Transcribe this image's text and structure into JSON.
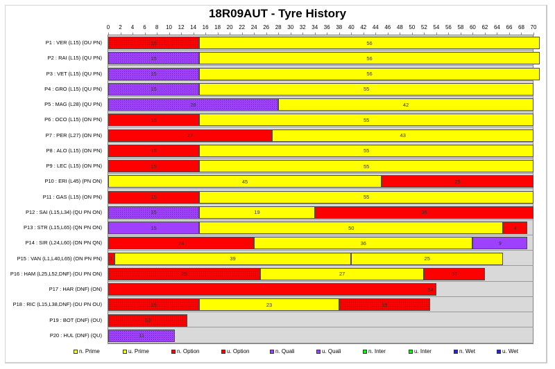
{
  "title": "18R09AUT - Tyre History",
  "colors": {
    "prime": "#ffff00",
    "option": "#ff0000",
    "quali": "#a040ff",
    "inter": "#00ff00",
    "wet": "#2020ff",
    "plot_bg": "#d9d9d9"
  },
  "chart_data": {
    "type": "bar",
    "orientation": "horizontal-stacked",
    "title": "18R09AUT - Tyre History",
    "xlabel": "",
    "ylabel": "",
    "xlim": [
      0,
      70
    ],
    "x_ticks": [
      0,
      2,
      4,
      6,
      8,
      10,
      12,
      14,
      16,
      18,
      20,
      22,
      24,
      26,
      28,
      30,
      32,
      34,
      36,
      38,
      40,
      42,
      44,
      46,
      48,
      50,
      52,
      54,
      56,
      58,
      60,
      62,
      64,
      66,
      68,
      70
    ],
    "grid": false,
    "legend_position": "bottom",
    "legend": [
      "n. Prime",
      "u. Prime",
      "n. Option",
      "u. Option",
      "n. Quali",
      "u. Quali",
      "n. Inter",
      "u. Inter",
      "n. Wet",
      "u. Wet"
    ],
    "rows": [
      {
        "label": "P1 : VER (L15) (OU PN)",
        "stints": [
          {
            "tyre": "u. Option",
            "laps": 15
          },
          {
            "tyre": "n. Prime",
            "laps": 56
          }
        ]
      },
      {
        "label": "P2 : RAI (L15) (QU PN)",
        "stints": [
          {
            "tyre": "u. Quali",
            "laps": 15
          },
          {
            "tyre": "n. Prime",
            "laps": 56
          }
        ]
      },
      {
        "label": "P3 : VET (L15) (QU PN)",
        "stints": [
          {
            "tyre": "u. Quali",
            "laps": 15
          },
          {
            "tyre": "n. Prime",
            "laps": 56
          }
        ]
      },
      {
        "label": "P4 : GRO (L15) (QU PN)",
        "stints": [
          {
            "tyre": "u. Quali",
            "laps": 15
          },
          {
            "tyre": "n. Prime",
            "laps": 55
          }
        ]
      },
      {
        "label": "P5 : MAG (L28) (QU PN)",
        "stints": [
          {
            "tyre": "u. Quali",
            "laps": 28
          },
          {
            "tyre": "n. Prime",
            "laps": 42
          }
        ]
      },
      {
        "label": "P6 : OCO (L15) (ON PN)",
        "stints": [
          {
            "tyre": "n. Option",
            "laps": 15
          },
          {
            "tyre": "n. Prime",
            "laps": 55
          }
        ]
      },
      {
        "label": "P7 : PER (L27) (ON PN)",
        "stints": [
          {
            "tyre": "n. Option",
            "laps": 27
          },
          {
            "tyre": "n. Prime",
            "laps": 43
          }
        ]
      },
      {
        "label": "P8 : ALO (L15) (ON PN)",
        "stints": [
          {
            "tyre": "n. Option",
            "laps": 15
          },
          {
            "tyre": "n. Prime",
            "laps": 55
          }
        ]
      },
      {
        "label": "P9 : LEC (L15) (ON PN)",
        "stints": [
          {
            "tyre": "n. Option",
            "laps": 15
          },
          {
            "tyre": "n. Prime",
            "laps": 55
          }
        ]
      },
      {
        "label": "P10 : ERI (L45) (PN ON)",
        "stints": [
          {
            "tyre": "n. Prime",
            "laps": 45
          },
          {
            "tyre": "n. Option",
            "laps": 25
          }
        ]
      },
      {
        "label": "P11 : GAS (L15) (ON PN)",
        "stints": [
          {
            "tyre": "n. Option",
            "laps": 15
          },
          {
            "tyre": "n. Prime",
            "laps": 55
          }
        ]
      },
      {
        "label": "P12 : SAI (L15,L34) (QU PN ON)",
        "stints": [
          {
            "tyre": "u. Quali",
            "laps": 15
          },
          {
            "tyre": "n. Prime",
            "laps": 19
          },
          {
            "tyre": "n. Option",
            "laps": 36
          }
        ]
      },
      {
        "label": "P13 : STR (L15,L65) (QN PN ON)",
        "stints": [
          {
            "tyre": "n. Quali",
            "laps": 15
          },
          {
            "tyre": "n. Prime",
            "laps": 50
          },
          {
            "tyre": "n. Option",
            "laps": 4
          }
        ]
      },
      {
        "label": "P14 : SIR (L24,L60) (ON PN QN)",
        "stints": [
          {
            "tyre": "n. Option",
            "laps": 24
          },
          {
            "tyre": "n. Prime",
            "laps": 36
          },
          {
            "tyre": "n. Quali",
            "laps": 9
          }
        ]
      },
      {
        "label": "P15 : VAN (L1,L40,L65) (ON PN PN)",
        "stints": [
          {
            "tyre": "n. Option",
            "laps": 1
          },
          {
            "tyre": "n. Prime",
            "laps": 39
          },
          {
            "tyre": "n. Prime",
            "laps": 25
          }
        ]
      },
      {
        "label": "P16 : HAM (L25,L52,DNF) (OU PN ON)",
        "stints": [
          {
            "tyre": "u. Option",
            "laps": 25
          },
          {
            "tyre": "n. Prime",
            "laps": 27
          },
          {
            "tyre": "n. Option",
            "laps": 10
          }
        ]
      },
      {
        "label": "P17 : HAR (DNF) (ON)",
        "stints": [
          {
            "tyre": "n. Option",
            "laps": 54
          }
        ]
      },
      {
        "label": "P18 : RIC (L15,L38,DNF) (OU PN OU)",
        "stints": [
          {
            "tyre": "u. Option",
            "laps": 15
          },
          {
            "tyre": "n. Prime",
            "laps": 23
          },
          {
            "tyre": "u. Option",
            "laps": 15
          }
        ]
      },
      {
        "label": "P19 : BOT (DNF) (OU)",
        "stints": [
          {
            "tyre": "u. Option",
            "laps": 13
          }
        ]
      },
      {
        "label": "P20 : HUL (DNF) (QU)",
        "stints": [
          {
            "tyre": "u. Quali",
            "laps": 11
          }
        ]
      }
    ]
  },
  "legend_items": [
    {
      "label": "n. Prime",
      "color": "#ffff00"
    },
    {
      "label": "u. Prime",
      "color": "#ffff00"
    },
    {
      "label": "n. Option",
      "color": "#ff0000"
    },
    {
      "label": "u. Option",
      "color": "#ff0000"
    },
    {
      "label": "n. Quali",
      "color": "#a040ff"
    },
    {
      "label": "u. Quali",
      "color": "#a040ff"
    },
    {
      "label": "n. Inter",
      "color": "#00ff00"
    },
    {
      "label": "u. Inter",
      "color": "#00ff00"
    },
    {
      "label": "n. Wet",
      "color": "#2020ff"
    },
    {
      "label": "u. Wet",
      "color": "#2020ff"
    }
  ]
}
